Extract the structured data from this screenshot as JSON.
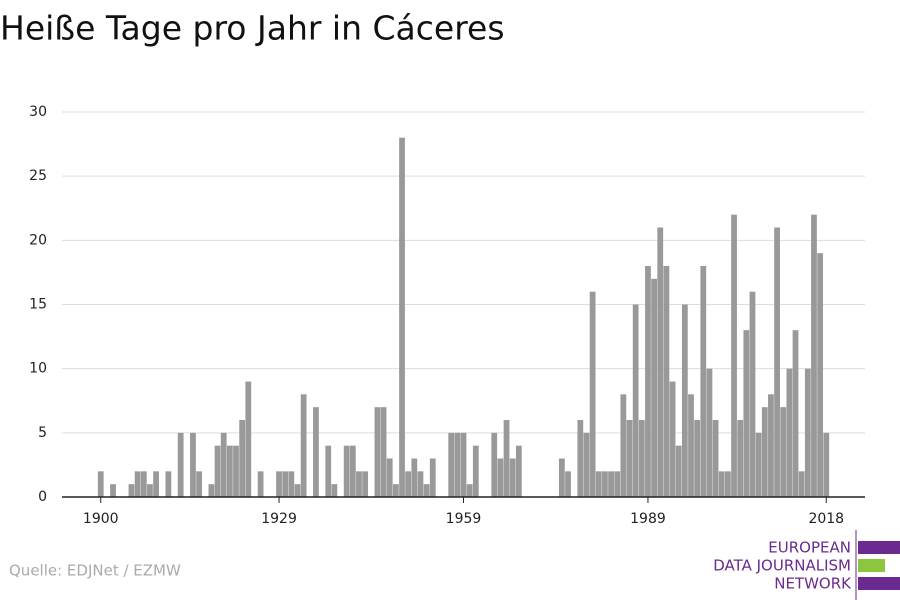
{
  "chart_data": {
    "type": "bar",
    "title": "Heiße Tage pro Jahr in Cáceres",
    "source": "Quelle: EDJNet / EZMW",
    "logo": [
      "EUROPEAN",
      "DATA JOURNALISM",
      "NETWORK"
    ],
    "color": "#999999",
    "x": [
      1900,
      1901,
      1902,
      1903,
      1904,
      1905,
      1906,
      1907,
      1908,
      1909,
      1910,
      1911,
      1912,
      1913,
      1914,
      1915,
      1916,
      1917,
      1918,
      1919,
      1920,
      1921,
      1922,
      1923,
      1924,
      1925,
      1926,
      1927,
      1928,
      1929,
      1930,
      1931,
      1932,
      1933,
      1934,
      1935,
      1936,
      1937,
      1938,
      1939,
      1940,
      1941,
      1942,
      1943,
      1944,
      1945,
      1946,
      1947,
      1948,
      1949,
      1950,
      1951,
      1952,
      1953,
      1954,
      1955,
      1956,
      1957,
      1958,
      1959,
      1960,
      1961,
      1962,
      1963,
      1964,
      1965,
      1966,
      1967,
      1968,
      1969,
      1970,
      1971,
      1972,
      1973,
      1974,
      1975,
      1976,
      1977,
      1978,
      1979,
      1980,
      1981,
      1982,
      1983,
      1984,
      1985,
      1986,
      1987,
      1988,
      1989,
      1990,
      1991,
      1992,
      1993,
      1994,
      1995,
      1996,
      1997,
      1998,
      1999,
      2000,
      2001,
      2002,
      2003,
      2004,
      2005,
      2006,
      2007,
      2008,
      2009,
      2010,
      2011,
      2012,
      2013,
      2014,
      2015,
      2016,
      2017,
      2018
    ],
    "values": [
      2,
      0,
      1,
      0,
      0,
      1,
      2,
      2,
      1,
      2,
      0,
      2,
      0,
      5,
      0,
      5,
      2,
      0,
      1,
      4,
      5,
      4,
      4,
      6,
      9,
      0,
      2,
      0,
      0,
      2,
      2,
      2,
      1,
      8,
      0,
      7,
      0,
      4,
      1,
      0,
      4,
      4,
      2,
      2,
      0,
      7,
      7,
      3,
      1,
      28,
      2,
      3,
      2,
      1,
      3,
      0,
      0,
      5,
      5,
      5,
      1,
      4,
      0,
      0,
      5,
      3,
      6,
      3,
      4,
      0,
      0,
      0,
      0,
      0,
      0,
      3,
      2,
      0,
      6,
      5,
      16,
      2,
      2,
      2,
      2,
      8,
      6,
      15,
      6,
      18,
      17,
      21,
      18,
      9,
      4,
      15,
      8,
      6,
      18,
      10,
      6,
      2,
      2,
      22,
      6,
      13,
      16,
      5,
      7,
      8,
      21,
      7,
      10,
      13,
      2,
      10,
      22,
      19,
      5
    ],
    "xlim": [
      1893.7,
      2024.3
    ],
    "xticks": [
      1900,
      1929,
      1959,
      1989,
      2018
    ],
    "ylim": [
      0,
      30
    ],
    "yticks": [
      0,
      5,
      10,
      15,
      20,
      25,
      30
    ],
    "grid": true
  }
}
